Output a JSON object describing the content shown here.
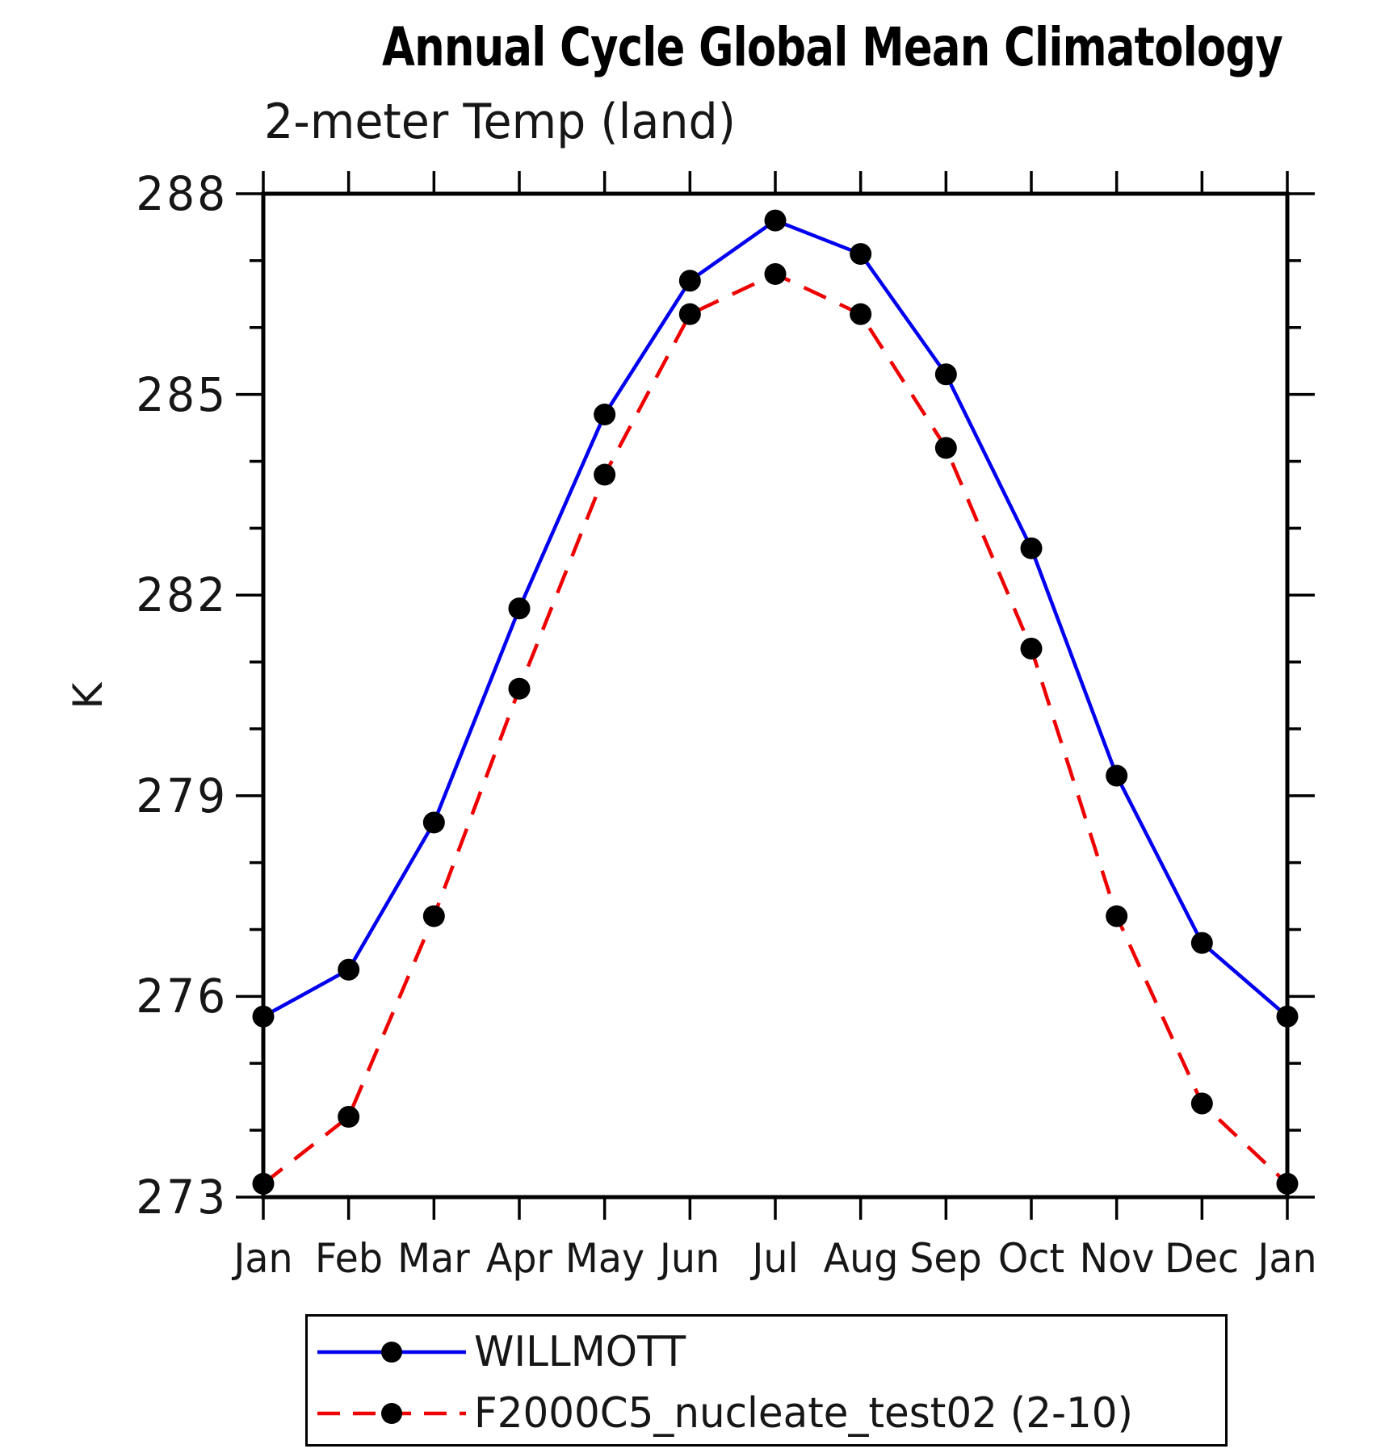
{
  "page": {
    "background": "#ffffff"
  },
  "chart_data": {
    "type": "line",
    "title": "Annual Cycle Global Mean Climatology",
    "subtitle": "2-meter Temp (land)",
    "xlabel": "",
    "ylabel": "K",
    "categories": [
      "Jan",
      "Feb",
      "Mar",
      "Apr",
      "May",
      "Jun",
      "Jul",
      "Aug",
      "Sep",
      "Oct",
      "Nov",
      "Dec",
      "Jan"
    ],
    "ylim": [
      273,
      288
    ],
    "ytick_major": [
      273,
      276,
      279,
      282,
      285,
      288
    ],
    "ytick_minor_step": 1,
    "grid": false,
    "legend_position": "bottom",
    "axis_color": "#000000",
    "series": [
      {
        "name": "WILLMOTT",
        "color": "#0000ee",
        "style": "solid",
        "marker": "circle",
        "marker_color": "#000000",
        "values": [
          275.7,
          276.4,
          278.6,
          281.8,
          284.7,
          286.7,
          287.6,
          287.1,
          285.3,
          282.7,
          279.3,
          276.8,
          275.7
        ]
      },
      {
        "name": "F2000C5_nucleate_test02 (2-10)",
        "color": "#ee0000",
        "style": "dashed",
        "marker": "circle",
        "marker_color": "#000000",
        "values": [
          273.2,
          274.2,
          277.2,
          280.6,
          283.8,
          286.2,
          286.8,
          286.2,
          284.2,
          281.2,
          277.2,
          274.4,
          273.2
        ]
      }
    ]
  }
}
